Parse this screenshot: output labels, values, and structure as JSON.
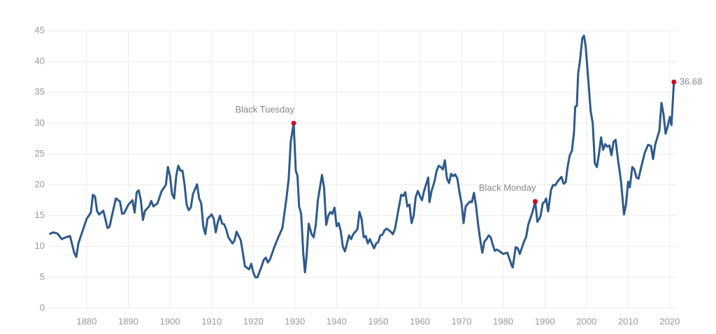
{
  "chart_data": {
    "type": "line",
    "x": [
      1871,
      1872,
      1873,
      1874,
      1875,
      1876,
      1877,
      1877.5,
      1878,
      1879,
      1880,
      1881,
      1881.5,
      1882,
      1882.5,
      1883,
      1884,
      1885,
      1885.5,
      1886,
      1887,
      1888,
      1888.5,
      1889,
      1890,
      1891,
      1891.5,
      1892,
      1892.5,
      1893,
      1893.5,
      1894,
      1895,
      1895.5,
      1896,
      1897,
      1898,
      1899,
      1899.5,
      1900,
      1900.5,
      1901,
      1901.5,
      1902,
      1902.5,
      1903,
      1903.5,
      1904,
      1904.5,
      1905,
      1905.5,
      1906,
      1906.5,
      1907,
      1907.5,
      1908,
      1908.5,
      1909,
      1910,
      1910.5,
      1911,
      1911.5,
      1912,
      1912.5,
      1913,
      1913.5,
      1914,
      1915,
      1915.5,
      1916,
      1917,
      1918,
      1919,
      1919.5,
      1920,
      1920.5,
      1921,
      1922,
      1922.5,
      1923,
      1923.5,
      1924,
      1925,
      1926,
      1927,
      1928,
      1928.5,
      1929,
      1929.7,
      1930.2,
      1930.6,
      1931,
      1931.5,
      1932,
      1932.4,
      1932.8,
      1933.3,
      1934,
      1934.5,
      1935,
      1935.5,
      1936.5,
      1937,
      1937.5,
      1938,
      1938.5,
      1939,
      1939.5,
      1940,
      1940.5,
      1941,
      1941.5,
      1942,
      1942.5,
      1943,
      1943.5,
      1944,
      1945,
      1945.5,
      1946,
      1946.5,
      1947,
      1947.5,
      1948,
      1948.5,
      1949,
      1949.5,
      1950,
      1950.5,
      1951,
      1951.5,
      1952,
      1953,
      1953.5,
      1954,
      1955,
      1955.5,
      1956,
      1956.5,
      1957,
      1957.5,
      1958,
      1958.5,
      1959,
      1959.5,
      1960,
      1960.5,
      1961,
      1962,
      1962.3,
      1962.8,
      1963.5,
      1964,
      1964.5,
      1965,
      1965.5,
      1966,
      1966.5,
      1967,
      1967.5,
      1968,
      1968.5,
      1969,
      1969.5,
      1970,
      1970.5,
      1971,
      1972,
      1972.5,
      1973,
      1973.5,
      1974,
      1974.5,
      1975,
      1975.5,
      1976,
      1976.5,
      1977,
      1977.5,
      1978,
      1978.5,
      1979,
      1980,
      1981,
      1981.5,
      1982,
      1982.3,
      1983,
      1983.5,
      1984,
      1984.5,
      1985,
      1985.5,
      1986,
      1987,
      1987.7,
      1988.2,
      1988.7,
      1989,
      1989.5,
      1990,
      1990.3,
      1990.8,
      1991.5,
      1992,
      1992.5,
      1993,
      1994,
      1994.5,
      1995,
      1995.5,
      1996,
      1996.5,
      1997,
      1997.3,
      1997.7,
      1998,
      1998.5,
      1999,
      1999.4,
      1999.8,
      2000.5,
      2001,
      2001.5,
      2002,
      2002.5,
      2003,
      2003.5,
      2004,
      2004.5,
      2005,
      2005.5,
      2006,
      2006.5,
      2007,
      2007.5,
      2008.3,
      2009,
      2009.5,
      2010,
      2010.4,
      2011,
      2011.5,
      2012,
      2012.5,
      2013,
      2014,
      2014.8,
      2015.5,
      2016,
      2016.5,
      2017.5,
      2018,
      2018.5,
      2019,
      2019.5,
      2020,
      2020.4,
      2021
    ],
    "values": [
      12.0,
      12.3,
      12.1,
      11.2,
      11.5,
      11.7,
      9.0,
      8.3,
      10.5,
      12.5,
      14.5,
      15.5,
      18.4,
      18.1,
      15.7,
      15.2,
      15.8,
      13.0,
      13.2,
      14.8,
      17.8,
      17.3,
      15.3,
      15.4,
      16.8,
      17.5,
      15.5,
      18.8,
      19.1,
      17.5,
      14.3,
      15.8,
      16.5,
      17.4,
      16.5,
      17.0,
      19.0,
      20.0,
      22.9,
      21.5,
      18.5,
      17.8,
      21.5,
      23.1,
      22.3,
      22.3,
      20.0,
      16.8,
      15.9,
      16.3,
      18.5,
      19.3,
      20.1,
      17.8,
      17.0,
      13.2,
      12.0,
      14.5,
      15.2,
      14.5,
      12.3,
      14.0,
      15.0,
      13.7,
      13.6,
      12.8,
      11.5,
      10.5,
      11.0,
      12.4,
      11.0,
      6.8,
      6.3,
      7.2,
      5.8,
      5.0,
      5.0,
      6.8,
      7.8,
      8.2,
      7.4,
      7.9,
      9.8,
      11.5,
      13.0,
      18.0,
      21.0,
      27.0,
      30.0,
      22.3,
      21.5,
      16.5,
      15.3,
      9.0,
      5.8,
      8.5,
      13.7,
      12.0,
      11.5,
      13.5,
      17.5,
      21.6,
      19.5,
      13.5,
      15.0,
      15.6,
      15.3,
      16.3,
      13.3,
      13.8,
      12.5,
      10.0,
      9.2,
      10.5,
      11.8,
      11.2,
      12.0,
      12.8,
      15.6,
      14.5,
      11.5,
      11.7,
      10.5,
      11.2,
      10.4,
      9.7,
      10.5,
      10.7,
      11.8,
      11.9,
      12.6,
      12.9,
      12.4,
      12.0,
      12.8,
      16.5,
      18.4,
      18.2,
      18.8,
      16.5,
      16.8,
      13.8,
      15.0,
      18.0,
      19.0,
      18.2,
      17.5,
      19.0,
      21.2,
      17.2,
      19.0,
      20.5,
      22.2,
      23.1,
      22.9,
      22.5,
      24.0,
      21.0,
      20.3,
      21.8,
      21.4,
      21.7,
      21.0,
      18.8,
      17.0,
      13.8,
      16.5,
      17.3,
      17.2,
      18.7,
      16.5,
      13.5,
      11.0,
      9.0,
      10.8,
      11.2,
      11.8,
      11.5,
      10.3,
      9.3,
      9.5,
      9.3,
      8.8,
      9.0,
      8.0,
      7.0,
      6.6,
      9.9,
      9.7,
      8.8,
      9.8,
      10.8,
      11.5,
      13.5,
      15.5,
      17.3,
      14.0,
      14.5,
      15.0,
      17.0,
      17.3,
      17.8,
      15.7,
      19.2,
      20.0,
      19.9,
      20.5,
      21.3,
      20.2,
      20.4,
      23.0,
      24.8,
      25.5,
      28.5,
      32.7,
      32.8,
      38.0,
      40.5,
      43.8,
      44.2,
      42.5,
      36.5,
      32.0,
      30.0,
      23.5,
      22.9,
      25.0,
      27.7,
      25.7,
      26.6,
      26.2,
      26.4,
      24.8,
      27.0,
      27.3,
      24.5,
      20.5,
      15.2,
      16.8,
      20.5,
      19.6,
      22.9,
      22.5,
      21.2,
      21.0,
      22.5,
      25.2,
      26.5,
      26.3,
      24.2,
      26.5,
      28.8,
      33.3,
      31.5,
      28.3,
      29.5,
      31.0,
      29.7,
      36.68
    ],
    "color": "#2e5a8b",
    "annotations": [
      {
        "label": "Black Tuesday",
        "x": 1929.7,
        "y": 30.0
      },
      {
        "label": "Black Monday",
        "x": 1987.7,
        "y": 17.3
      },
      {
        "label": "36.68",
        "x": 2021,
        "y": 36.68
      }
    ],
    "marker_color": "#d0021b",
    "xlim": [
      1870.6,
      2021.7
    ],
    "xticks": [
      1880,
      1890,
      1900,
      1910,
      1920,
      1930,
      1940,
      1950,
      1960,
      1970,
      1980,
      1990,
      2000,
      2010,
      2020
    ],
    "ylim": [
      0,
      45
    ],
    "yticks": [
      0,
      5,
      10,
      15,
      20,
      25,
      30,
      35,
      40,
      45
    ],
    "grid": true
  }
}
